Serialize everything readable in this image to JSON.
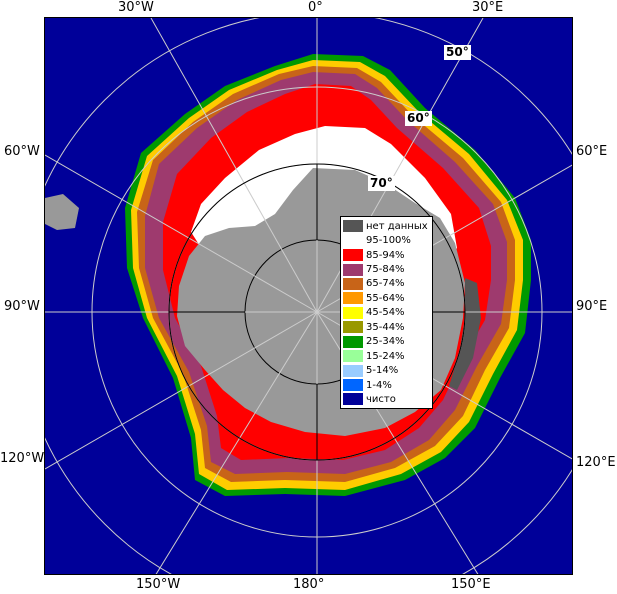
{
  "longitude_labels": {
    "top": [
      "30°W",
      "0°",
      "30°E"
    ],
    "left": [
      "60°W",
      "90°W",
      "120°W"
    ],
    "right": [
      "60°E",
      "90°E",
      "120°E"
    ],
    "bottom": [
      "150°W",
      "180°",
      "150°E"
    ]
  },
  "latitude_labels": [
    "50°",
    "60°",
    "70°"
  ],
  "legend": [
    {
      "label": "нет данных",
      "color": "#555555"
    },
    {
      "label": "95-100%",
      "color": "#ffffff"
    },
    {
      "label": "85-94%",
      "color": "#ff0000"
    },
    {
      "label": "75-84%",
      "color": "#9e3a6e"
    },
    {
      "label": "65-74%",
      "color": "#c86418"
    },
    {
      "label": "55-64%",
      "color": "#ff9900"
    },
    {
      "label": "45-54%",
      "color": "#ffff00"
    },
    {
      "label": "35-44%",
      "color": "#999900"
    },
    {
      "label": "25-34%",
      "color": "#009900"
    },
    {
      "label": "15-24%",
      "color": "#99ff99"
    },
    {
      "label": "5-14%",
      "color": "#99ccff"
    },
    {
      "label": "1-4%",
      "color": "#0066ff"
    },
    {
      "label": "чисто",
      "color": "#000099"
    }
  ],
  "colors": {
    "ocean": "#000099",
    "land": "#999999",
    "no_data": "#555555",
    "grid": "#cccccc"
  }
}
